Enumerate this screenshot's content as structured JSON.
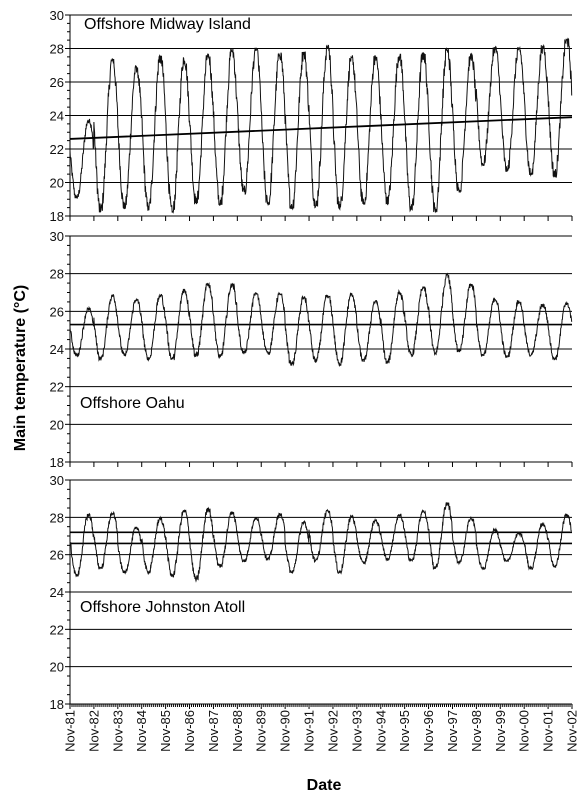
{
  "chart_data": {
    "type": "line",
    "ylabel": "Main temperature (°C)",
    "xlabel": "Date",
    "x_ticks": [
      "Nov-81",
      "Nov-82",
      "Nov-83",
      "Nov-84",
      "Nov-85",
      "Nov-86",
      "Nov-87",
      "Nov-88",
      "Nov-89",
      "Nov-90",
      "Nov-91",
      "Nov-92",
      "Nov-93",
      "Nov-94",
      "Nov-95",
      "Nov-96",
      "Nov-97",
      "Nov-98",
      "Nov-99",
      "Nov-00",
      "Nov-01",
      "Nov-02"
    ],
    "x_range": [
      "Nov-81",
      "Nov-02"
    ],
    "grid": "horizontal",
    "panels": [
      {
        "title": "Offshore Midway Island",
        "ylim": [
          18,
          30
        ],
        "yticks": [
          18,
          20,
          22,
          24,
          26,
          28,
          30
        ],
        "annual_means": [
          23.0,
          22.6,
          22.6,
          22.9,
          22.8,
          22.8,
          23.0,
          23.1,
          23.0,
          22.9,
          23.1,
          22.9,
          22.8,
          23.0,
          22.9,
          22.9,
          23.2,
          23.9,
          23.7,
          23.8,
          24.0
        ],
        "annual_max": [
          23.8,
          27.4,
          27.0,
          27.6,
          27.5,
          27.7,
          28.0,
          28.0,
          27.8,
          27.8,
          28.2,
          27.6,
          27.6,
          27.7,
          27.8,
          28.0,
          27.7,
          28.1,
          28.1,
          28.2,
          28.6
        ],
        "annual_min": [
          19.0,
          18.2,
          18.4,
          18.3,
          18.1,
          18.7,
          18.6,
          19.3,
          18.6,
          18.4,
          18.5,
          18.4,
          18.6,
          18.7,
          18.3,
          18.2,
          19.4,
          21.0,
          20.6,
          20.4,
          20.3
        ],
        "trend": {
          "start": 22.6,
          "end": 23.9
        }
      },
      {
        "title": "Offshore Oahu",
        "ylim": [
          18,
          30
        ],
        "yticks": [
          18,
          20,
          22,
          24,
          26,
          28,
          30
        ],
        "annual_max": [
          26.2,
          26.9,
          26.7,
          26.9,
          27.2,
          27.5,
          27.5,
          27.0,
          27.0,
          26.8,
          26.9,
          27.0,
          26.6,
          27.1,
          27.3,
          28.0,
          27.5,
          26.7,
          26.6,
          26.4,
          26.5
        ],
        "annual_min": [
          23.6,
          23.4,
          23.6,
          23.4,
          23.4,
          23.6,
          23.5,
          23.7,
          23.7,
          23.1,
          23.3,
          23.1,
          23.3,
          23.2,
          23.6,
          23.7,
          23.8,
          23.6,
          23.5,
          23.6,
          23.4
        ],
        "reference_lines": [
          25.3
        ]
      },
      {
        "title": "Offshore Johnston Atoll",
        "ylim": [
          18,
          30
        ],
        "yticks": [
          18,
          20,
          22,
          24,
          26,
          28,
          30
        ],
        "annual_max": [
          28.2,
          28.3,
          27.5,
          28.0,
          28.4,
          28.5,
          28.3,
          28.0,
          28.2,
          27.8,
          28.4,
          28.1,
          27.9,
          28.2,
          28.4,
          28.8,
          28.0,
          27.4,
          27.2,
          27.7,
          28.2
        ],
        "annual_min": [
          24.8,
          25.2,
          25.0,
          25.0,
          24.8,
          24.6,
          25.3,
          25.6,
          25.7,
          25.0,
          25.6,
          25.0,
          25.5,
          25.7,
          25.6,
          25.2,
          25.5,
          25.2,
          25.6,
          25.2,
          25.3
        ],
        "reference_lines": [
          26.6,
          27.2
        ]
      }
    ]
  }
}
